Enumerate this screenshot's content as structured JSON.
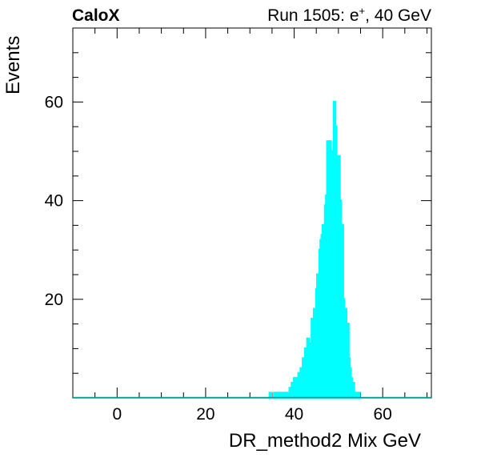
{
  "chart_data": {
    "type": "histogram",
    "header_left": "CaloX",
    "header_right_prefix": "Run 1505: e",
    "header_right_sup": "+",
    "header_right_suffix": ", 40 GeV",
    "xlabel": "DR_method2 Mix GeV",
    "ylabel": "Events",
    "xlim": [
      -10,
      71
    ],
    "ylim": [
      0,
      75
    ],
    "x_ticks": [
      0,
      20,
      40,
      60
    ],
    "x_tick_labels": [
      "0",
      "20",
      "40",
      "60"
    ],
    "y_ticks": [
      20,
      40,
      60
    ],
    "y_tick_labels": [
      "20",
      "40",
      "60"
    ],
    "bin_width": 0.25,
    "line_color": "#00ffff",
    "baseline_color": "#009999",
    "bins": [
      [
        34.5,
        1
      ],
      [
        35.5,
        1
      ],
      [
        36.0,
        1
      ],
      [
        36.5,
        1
      ],
      [
        37.0,
        1
      ],
      [
        37.5,
        1
      ],
      [
        38.0,
        1
      ],
      [
        38.5,
        1
      ],
      [
        39.0,
        2
      ],
      [
        39.25,
        1
      ],
      [
        39.5,
        3
      ],
      [
        39.75,
        2
      ],
      [
        40.0,
        4
      ],
      [
        40.25,
        3
      ],
      [
        40.5,
        4
      ],
      [
        40.75,
        2
      ],
      [
        41.0,
        5
      ],
      [
        41.25,
        3
      ],
      [
        41.5,
        6
      ],
      [
        41.75,
        4
      ],
      [
        42.0,
        8
      ],
      [
        42.25,
        6
      ],
      [
        42.5,
        10
      ],
      [
        42.75,
        7
      ],
      [
        43.0,
        12
      ],
      [
        43.25,
        9
      ],
      [
        43.5,
        11
      ],
      [
        43.75,
        8
      ],
      [
        44.0,
        16
      ],
      [
        44.25,
        13
      ],
      [
        44.5,
        18
      ],
      [
        44.75,
        15
      ],
      [
        45.0,
        22
      ],
      [
        45.25,
        25
      ],
      [
        45.5,
        24
      ],
      [
        45.75,
        30
      ],
      [
        46.0,
        32
      ],
      [
        46.25,
        33
      ],
      [
        46.5,
        35
      ],
      [
        46.75,
        34
      ],
      [
        47.0,
        39
      ],
      [
        47.25,
        41
      ],
      [
        47.5,
        52
      ],
      [
        47.75,
        45
      ],
      [
        48.0,
        52
      ],
      [
        48.25,
        48
      ],
      [
        48.5,
        42
      ],
      [
        48.75,
        50
      ],
      [
        49.0,
        60
      ],
      [
        49.25,
        55
      ],
      [
        49.5,
        47
      ],
      [
        49.75,
        44
      ],
      [
        50.0,
        49
      ],
      [
        50.25,
        40
      ],
      [
        50.5,
        33
      ],
      [
        50.75,
        35
      ],
      [
        51.0,
        20
      ],
      [
        51.25,
        15
      ],
      [
        51.5,
        18
      ],
      [
        51.75,
        10
      ],
      [
        52.0,
        15
      ],
      [
        52.25,
        8
      ],
      [
        52.5,
        6
      ],
      [
        52.75,
        4
      ],
      [
        53.0,
        2
      ],
      [
        53.25,
        3
      ],
      [
        53.5,
        1
      ],
      [
        54.0,
        1
      ],
      [
        54.5,
        1
      ]
    ]
  }
}
